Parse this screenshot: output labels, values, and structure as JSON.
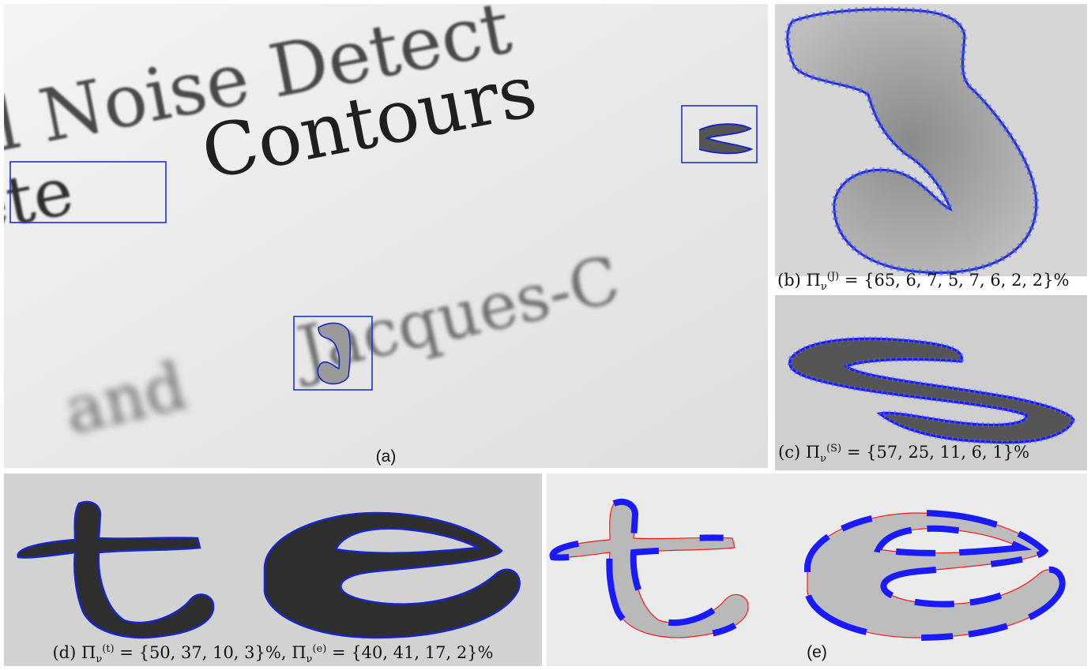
{
  "figure": {
    "panels": [
      {
        "id": "a",
        "caption": "(a)",
        "words": [
          "l Noise Detect",
          "ete",
          "Contours",
          "and",
          "Jacques-C"
        ]
      },
      {
        "id": "b",
        "caption_label": "(b)",
        "pi_symbol": "Π",
        "sub": "ν",
        "sup": "(J)",
        "values": "{65, 6, 7, 5, 7, 6, 2, 2}%"
      },
      {
        "id": "c",
        "caption_label": "(c)",
        "pi_symbol": "Π",
        "sub": "ν",
        "sup": "(S)",
        "values": "{57, 25, 11, 6, 1}%"
      },
      {
        "id": "d",
        "caption_label": "(d)",
        "pi_symbol": "Π",
        "sub": "ν",
        "sup_t": "(t)",
        "values_t": "{50, 37, 10, 3}%,",
        "sup_e": "(e)",
        "values_e": "{40, 41, 17, 2}%"
      },
      {
        "id": "e",
        "caption": "(e)"
      }
    ],
    "colors": {
      "box": "#1f2fe0",
      "contour": "#1726c9",
      "thick_contour": "#1a1aff",
      "thin_red": "#ff1a1a",
      "letter_dark": "#222222",
      "paper": "#e6e6e6"
    }
  }
}
